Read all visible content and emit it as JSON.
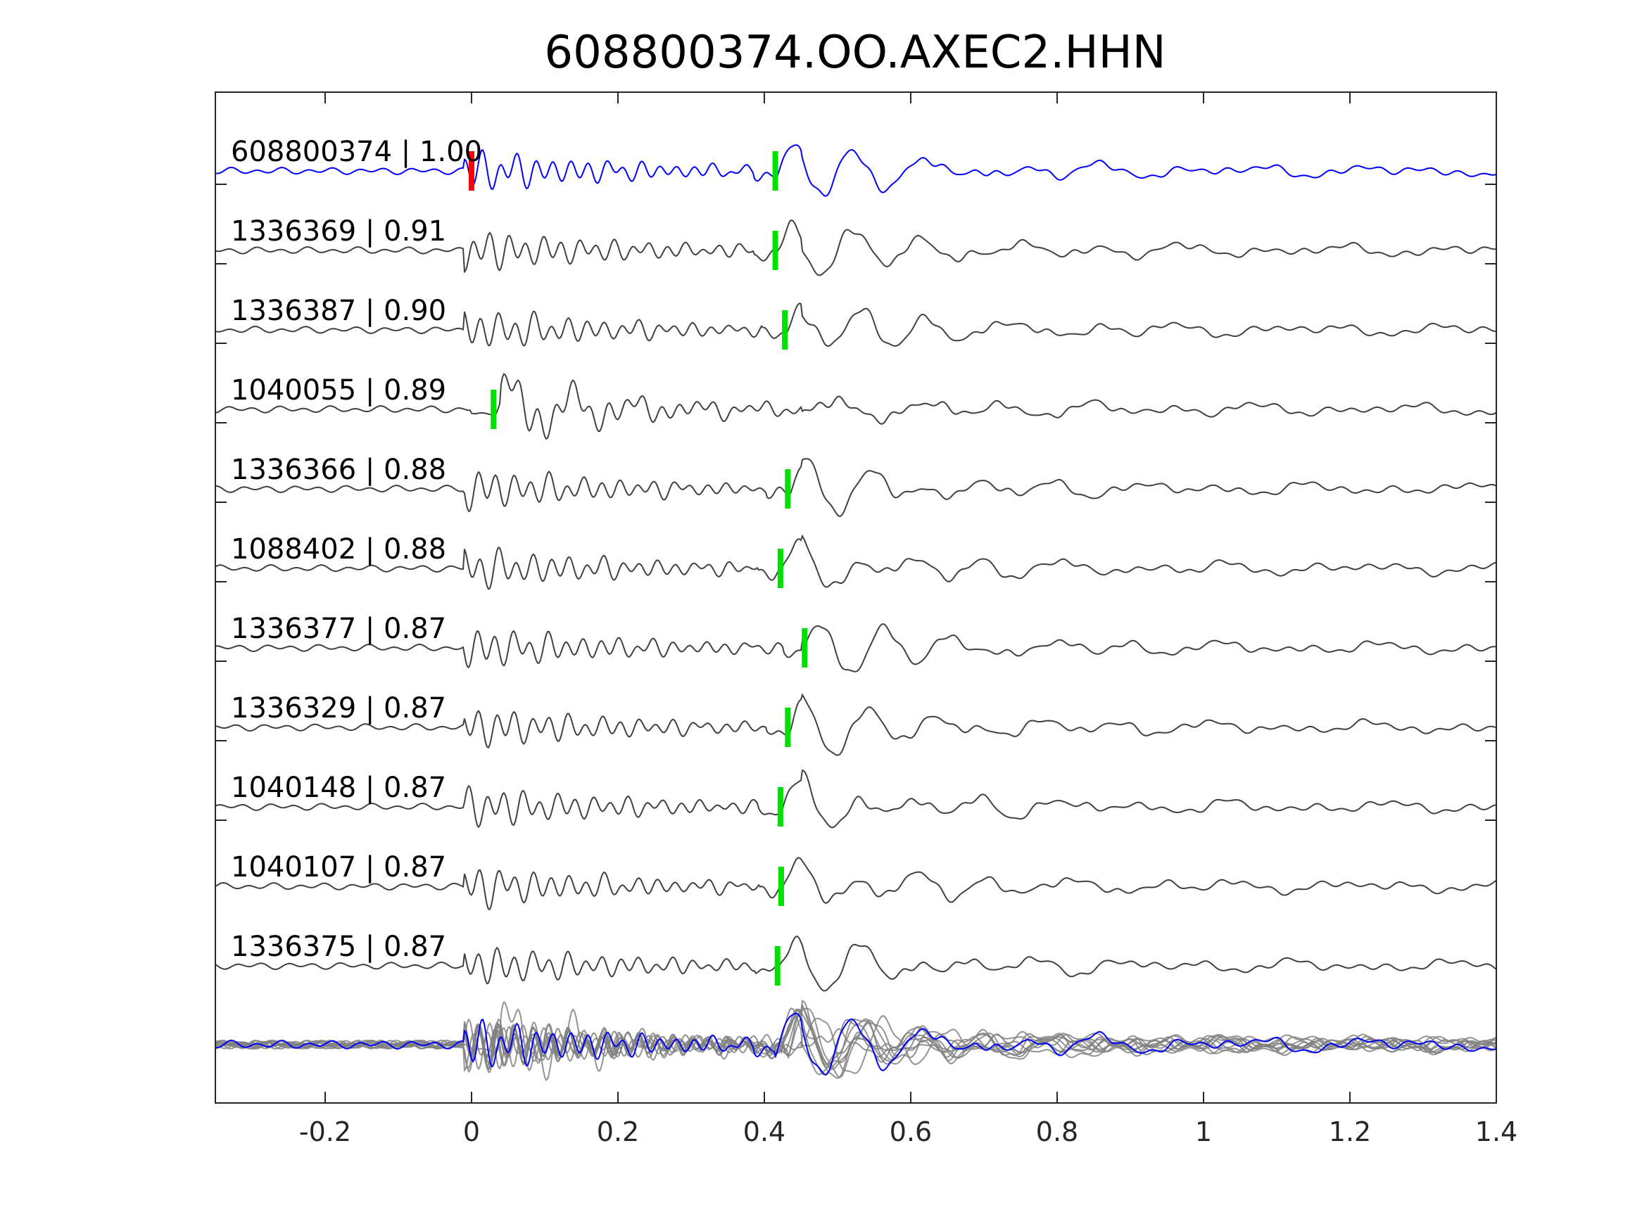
{
  "chart_data": {
    "type": "line",
    "title": "608800374.OO.AXEC2.HHN",
    "xlabel": "",
    "ylabel": "",
    "xlim": [
      -0.35,
      1.4
    ],
    "xticks": [
      -0.2,
      0,
      0.2,
      0.4,
      0.6,
      0.8,
      1,
      1.2,
      1.4
    ],
    "xtick_labels": [
      "-0.2",
      "0",
      "0.2",
      "0.4",
      "0.6",
      "0.8",
      "1",
      "1.2",
      "1.4"
    ],
    "grid": false,
    "legend": "none",
    "colors": {
      "template": "#0000ff",
      "trace": "#404040",
      "stack": "#808080",
      "origin_pick": "#ff0000",
      "phase_pick": "#00e000",
      "axis": "#262626"
    },
    "series": [
      {
        "label": "608800374 | 1.00",
        "pick": 0.415,
        "template": true
      },
      {
        "label": "1336369 | 0.91",
        "pick": 0.415
      },
      {
        "label": "1336387 | 0.90",
        "pick": 0.428
      },
      {
        "label": "1040055 | 0.89",
        "pick": 0.03
      },
      {
        "label": "1336366 | 0.88",
        "pick": 0.432
      },
      {
        "label": "1088402 | 0.88",
        "pick": 0.422
      },
      {
        "label": "1336377 | 0.87",
        "pick": 0.455
      },
      {
        "label": "1336329 | 0.87",
        "pick": 0.432
      },
      {
        "label": "1040148 | 0.87",
        "pick": 0.422
      },
      {
        "label": "1040107 | 0.87",
        "pick": 0.423
      },
      {
        "label": "1336375 | 0.87",
        "pick": 0.418
      }
    ],
    "origin_pick": 0.0
  }
}
